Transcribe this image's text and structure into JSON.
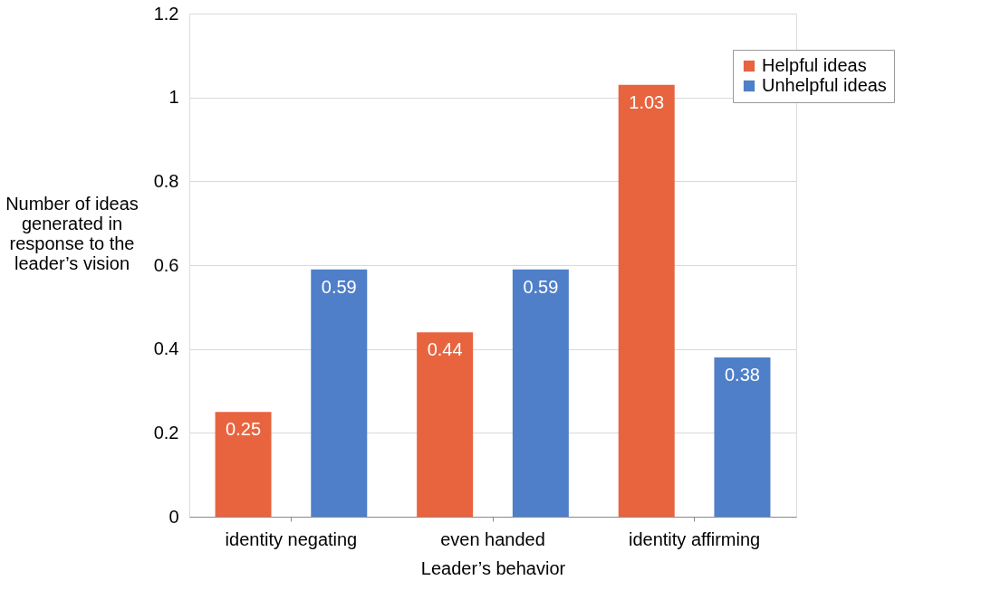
{
  "chart_data": {
    "type": "bar",
    "xlabel": "Leader’s behavior",
    "ylabel": "Number of ideas generated in response to the leader’s vision",
    "categories": [
      "identity negating",
      "even handed",
      "identity affirming"
    ],
    "series": [
      {
        "name": "Helpful ideas",
        "color": "#e8643f",
        "values": [
          0.25,
          0.44,
          1.03
        ]
      },
      {
        "name": "Unhelpful ideas",
        "color": "#4f7fc8",
        "values": [
          0.59,
          0.59,
          0.38
        ]
      }
    ],
    "ylim": [
      0,
      1.2
    ],
    "yticks": [
      0,
      0.2,
      0.4,
      0.6,
      0.8,
      1,
      1.2
    ],
    "grid": "y",
    "legend": "top right",
    "data_labels": true
  }
}
